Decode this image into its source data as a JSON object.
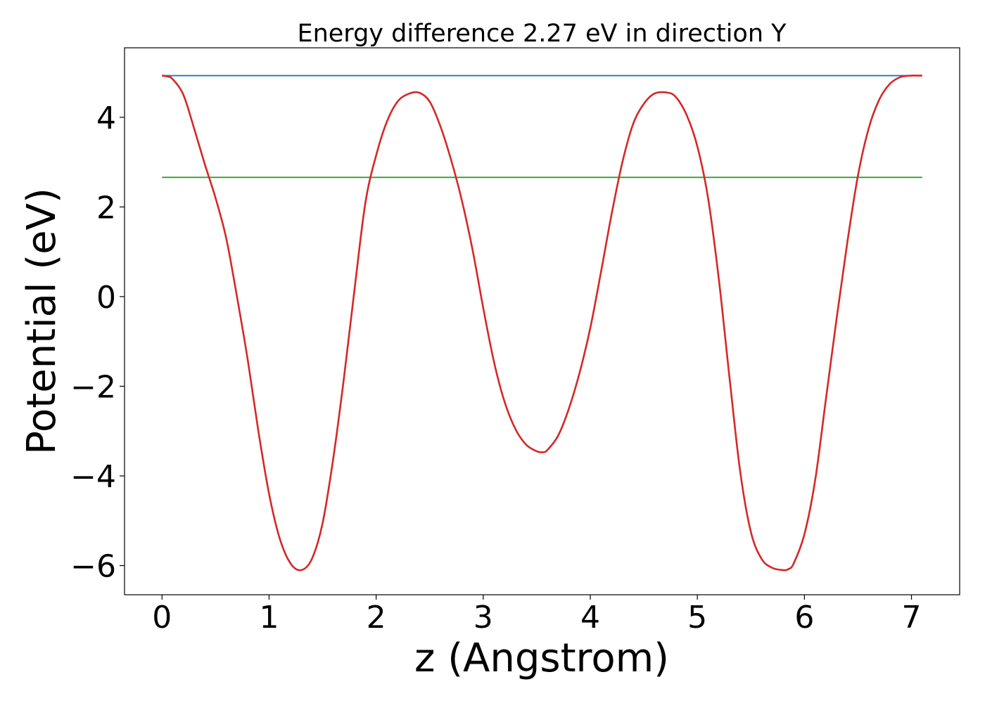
{
  "chart_data": {
    "type": "line",
    "title": "Energy difference 2.27 eV in direction Y",
    "xlabel": "z (Angstrom)",
    "ylabel": "Potential (eV)",
    "xlim": [
      -0.35,
      7.45
    ],
    "ylim": [
      -6.65,
      5.55
    ],
    "grid": false,
    "legend": "none",
    "x_ticks": [
      {
        "value": 0,
        "label": "0"
      },
      {
        "value": 1,
        "label": "1"
      },
      {
        "value": 2,
        "label": "2"
      },
      {
        "value": 3,
        "label": "3"
      },
      {
        "value": 4,
        "label": "4"
      },
      {
        "value": 5,
        "label": "5"
      },
      {
        "value": 6,
        "label": "6"
      },
      {
        "value": 7,
        "label": "7"
      }
    ],
    "y_ticks": [
      {
        "value": -6,
        "label": "−6"
      },
      {
        "value": -4,
        "label": "−4"
      },
      {
        "value": -2,
        "label": "−2"
      },
      {
        "value": 0,
        "label": "0"
      },
      {
        "value": 2,
        "label": "2"
      },
      {
        "value": 4,
        "label": "4"
      }
    ],
    "series": [
      {
        "color": "#d62728",
        "style": "curve",
        "x": [
          0,
          0.05,
          0.1,
          0.2,
          0.3,
          0.4,
          0.5,
          0.6,
          0.7,
          0.8,
          0.9,
          1.0,
          1.1,
          1.2,
          1.3,
          1.4,
          1.5,
          1.6,
          1.7,
          1.8,
          1.9,
          2.0,
          2.1,
          2.2,
          2.3,
          2.4,
          2.5,
          2.6,
          2.7,
          2.8,
          2.9,
          3.0,
          3.1,
          3.2,
          3.3,
          3.4,
          3.5,
          3.56,
          3.6,
          3.7,
          3.8,
          3.9,
          4.0,
          4.1,
          4.2,
          4.3,
          4.4,
          4.5,
          4.6,
          4.72,
          4.8,
          4.9,
          5.0,
          5.1,
          5.2,
          5.3,
          5.4,
          5.5,
          5.6,
          5.7,
          5.8,
          5.85,
          5.9,
          6.0,
          6.1,
          6.2,
          6.3,
          6.4,
          6.5,
          6.6,
          6.7,
          6.8,
          6.9,
          7.0,
          7.05,
          7.1
        ],
        "y": [
          4.93,
          4.91,
          4.85,
          4.5,
          3.75,
          2.95,
          2.2,
          1.3,
          0.0,
          -1.4,
          -3.0,
          -4.4,
          -5.4,
          -5.95,
          -6.1,
          -5.85,
          -5.05,
          -3.6,
          -1.8,
          0.2,
          2.1,
          3.15,
          3.9,
          4.35,
          4.52,
          4.55,
          4.35,
          3.8,
          3.05,
          2.15,
          1.05,
          -0.25,
          -1.45,
          -2.35,
          -2.95,
          -3.3,
          -3.45,
          -3.47,
          -3.42,
          -3.1,
          -2.5,
          -1.7,
          -0.7,
          0.55,
          1.85,
          3.0,
          3.85,
          4.3,
          4.53,
          4.55,
          4.45,
          4.05,
          3.35,
          2.2,
          0.4,
          -1.8,
          -3.9,
          -5.25,
          -5.85,
          -6.05,
          -6.1,
          -6.08,
          -5.95,
          -5.3,
          -4.1,
          -2.3,
          -0.5,
          1.2,
          2.7,
          3.75,
          4.4,
          4.75,
          4.9,
          4.93,
          4.93,
          4.93
        ]
      },
      {
        "color": "#1f77b4",
        "style": "hline",
        "x": [
          0,
          7.1
        ],
        "y": [
          4.93,
          4.93
        ]
      },
      {
        "color": "#2ca02c",
        "style": "hline",
        "x": [
          0,
          7.1
        ],
        "y": [
          2.66,
          2.66
        ]
      }
    ]
  }
}
